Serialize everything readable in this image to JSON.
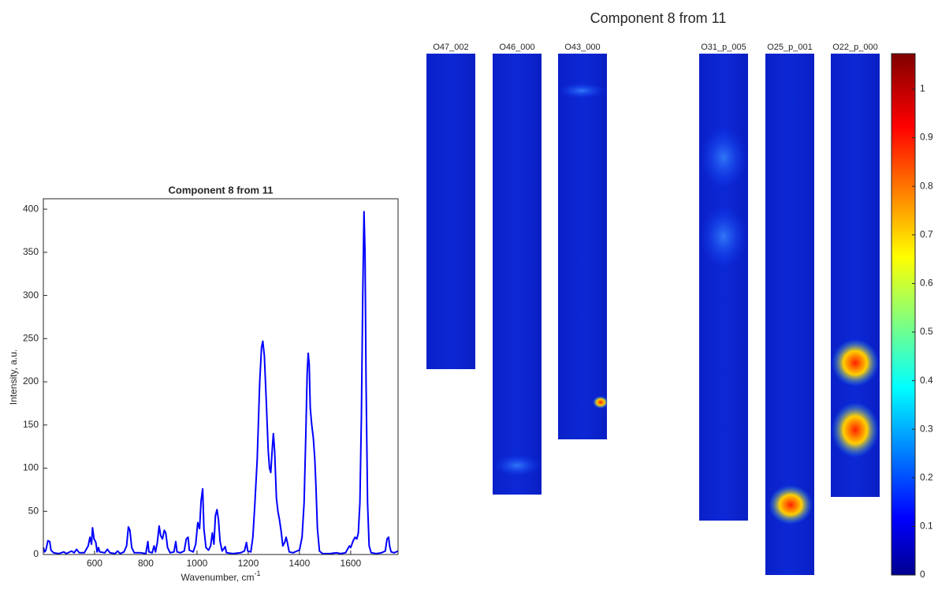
{
  "chart_data": [
    {
      "type": "line",
      "title": "Component 8 from 11",
      "xlabel": "Wavenumber, cm",
      "xlabel_sup": "-1",
      "ylabel": "Intensity, a.u.",
      "color": "#0000ff",
      "xlim": [
        400,
        1785
      ],
      "ylim": [
        0,
        412
      ],
      "xticks": [
        600,
        800,
        1000,
        1200,
        1400,
        1600
      ],
      "yticks": [
        0,
        50,
        100,
        150,
        200,
        250,
        300,
        350,
        400
      ],
      "x": [
        400,
        405,
        410,
        418,
        425,
        430,
        440,
        460,
        480,
        490,
        510,
        520,
        530,
        540,
        560,
        575,
        582,
        588,
        592,
        598,
        605,
        610,
        615,
        620,
        640,
        650,
        660,
        680,
        690,
        700,
        715,
        725,
        732,
        738,
        745,
        755,
        780,
        800,
        808,
        812,
        825,
        832,
        838,
        845,
        852,
        858,
        865,
        872,
        878,
        885,
        895,
        910,
        917,
        922,
        935,
        950,
        958,
        965,
        970,
        985,
        995,
        1003,
        1010,
        1016,
        1022,
        1027,
        1035,
        1045,
        1053,
        1060,
        1066,
        1072,
        1078,
        1084,
        1090,
        1098,
        1105,
        1110,
        1115,
        1140,
        1170,
        1185,
        1193,
        1198,
        1210,
        1218,
        1225,
        1235,
        1245,
        1252,
        1257,
        1263,
        1270,
        1278,
        1283,
        1288,
        1293,
        1298,
        1303,
        1310,
        1316,
        1322,
        1328,
        1335,
        1342,
        1348,
        1352,
        1360,
        1375,
        1390,
        1400,
        1410,
        1418,
        1425,
        1430,
        1434,
        1438,
        1442,
        1448,
        1454,
        1460,
        1464,
        1470,
        1478,
        1490,
        1520,
        1545,
        1560,
        1580,
        1595,
        1600,
        1610,
        1617,
        1624,
        1630,
        1636,
        1642,
        1647,
        1652,
        1656,
        1660,
        1666,
        1672,
        1680,
        1700,
        1720,
        1735,
        1742,
        1748,
        1752,
        1758,
        1770,
        1785
      ],
      "values": [
        8,
        3,
        5,
        16,
        15,
        5,
        2,
        1,
        3,
        1,
        4,
        2,
        6,
        2,
        2,
        10,
        20,
        12,
        31,
        18,
        14,
        3,
        8,
        3,
        2,
        6,
        2,
        1,
        4,
        1,
        3,
        10,
        32,
        28,
        8,
        2,
        2,
        1,
        15,
        3,
        2,
        10,
        3,
        14,
        33,
        22,
        18,
        28,
        25,
        8,
        2,
        3,
        15,
        3,
        2,
        4,
        18,
        20,
        5,
        3,
        12,
        37,
        30,
        62,
        76,
        30,
        8,
        5,
        10,
        25,
        12,
        45,
        52,
        40,
        15,
        4,
        7,
        9,
        2,
        1,
        2,
        4,
        14,
        4,
        3,
        20,
        55,
        110,
        200,
        240,
        247,
        230,
        180,
        120,
        100,
        95,
        118,
        140,
        120,
        65,
        50,
        40,
        28,
        10,
        14,
        20,
        15,
        3,
        2,
        4,
        5,
        20,
        60,
        140,
        210,
        233,
        220,
        170,
        150,
        135,
        110,
        82,
        30,
        4,
        1,
        1,
        2,
        1,
        2,
        10,
        8,
        16,
        20,
        18,
        25,
        60,
        160,
        300,
        397,
        350,
        200,
        60,
        10,
        2,
        1,
        2,
        4,
        18,
        20,
        10,
        3,
        2,
        4
      ]
    },
    {
      "type": "image",
      "title": "Component 8 from 11",
      "panels": [
        "O47_002",
        "O46_000",
        "O43_000",
        "O31_p_005",
        "O25_p_001",
        "O22_p_000"
      ],
      "clim": [
        0,
        1.073
      ],
      "cticks": [
        0,
        0.1,
        0.2,
        0.3,
        0.4,
        0.5,
        0.6,
        0.7,
        0.8,
        0.9,
        1
      ]
    }
  ]
}
